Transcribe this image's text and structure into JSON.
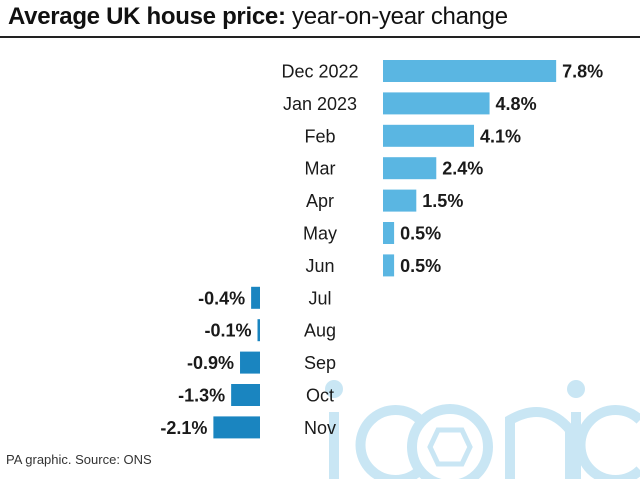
{
  "header": {
    "title_bold": "Average UK house price:",
    "title_rest": " year-on-year change"
  },
  "footer": {
    "source": "PA graphic. Source: ONS"
  },
  "watermark": {
    "text": "iconic"
  },
  "colors": {
    "positive_bar": "#5ab6e2",
    "negative_bar": "#1a85c0",
    "text": "#1a1a1a",
    "watermark": "#c9e6f4"
  },
  "chart_data": {
    "type": "bar",
    "orientation": "horizontal",
    "title": "Average UK house price: year-on-year change",
    "categories": [
      "Dec 2022",
      "Jan 2023",
      "Feb",
      "Mar",
      "Apr",
      "May",
      "Jun",
      "Jul",
      "Aug",
      "Sep",
      "Oct",
      "Nov"
    ],
    "values": [
      7.8,
      4.8,
      4.1,
      2.4,
      1.5,
      0.5,
      0.5,
      -0.4,
      -0.1,
      -0.9,
      -1.3,
      -2.1
    ],
    "labels": [
      "7.8%",
      "4.8%",
      "4.1%",
      "2.4%",
      "1.5%",
      "0.5%",
      "0.5%",
      "-0.4%",
      "-0.1%",
      "-0.9%",
      "-1.3%",
      "-2.1%"
    ],
    "unit": "%",
    "grid": false,
    "legend": "none"
  }
}
